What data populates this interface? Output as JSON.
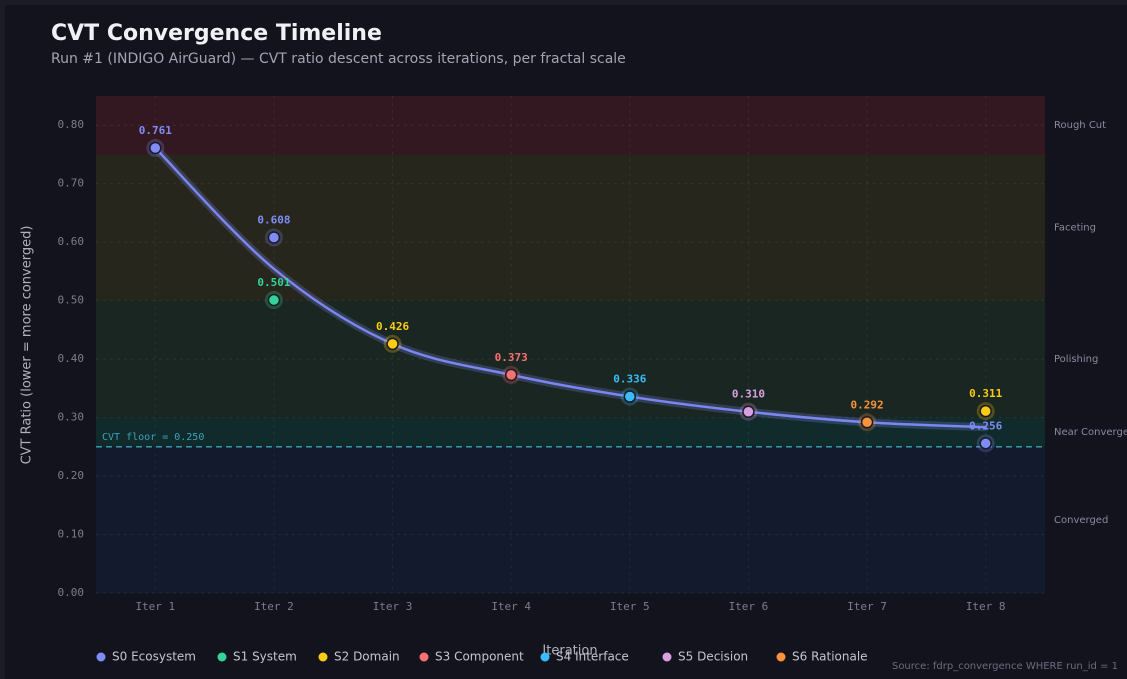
{
  "chart_data": {
    "type": "scatter",
    "title": "CVT Convergence Timeline",
    "subtitle": "Run #1 (INDIGO AirGuard) — CVT ratio descent across iterations, per fractal scale",
    "x_label": "Iteration",
    "y_label": "CVT Ratio (lower = more converged)",
    "source": "Source: fdrp_convergence WHERE run_id = 1",
    "categories": [
      "Iter 1",
      "Iter 2",
      "Iter 3",
      "Iter 4",
      "Iter 5",
      "Iter 6",
      "Iter 7",
      "Iter 8"
    ],
    "ylim": [
      0,
      0.85
    ],
    "yticks": [
      {
        "value": 0,
        "label": "0.00"
      },
      {
        "value": 0.1,
        "label": "0.10"
      },
      {
        "value": 0.2,
        "label": "0.20"
      },
      {
        "value": 0.3,
        "label": "0.30"
      },
      {
        "value": 0.4,
        "label": "0.40"
      },
      {
        "value": 0.5,
        "label": "0.50"
      },
      {
        "value": 0.6,
        "label": "0.60"
      },
      {
        "value": 0.7,
        "label": "0.70"
      },
      {
        "value": 0.8,
        "label": "0.80"
      }
    ],
    "grid": true,
    "bands": [
      {
        "label": "Rough Cut",
        "from": 0.75,
        "to": 0.85,
        "color": "#3a1a22"
      },
      {
        "label": "Faceting",
        "from": 0.5,
        "to": 0.75,
        "color": "#2a2a1c"
      },
      {
        "label": "Polishing",
        "from": 0.3,
        "to": 0.5,
        "color": "#1c2a22"
      },
      {
        "label": "Near Converge",
        "from": 0.25,
        "to": 0.3,
        "color": "#12302f"
      },
      {
        "label": "Converged",
        "from": 0,
        "to": 0.25,
        "color": "#141c30"
      }
    ],
    "reference": {
      "value": 0.25,
      "label": "CVT floor = 0.250",
      "color": "#3aa3b8"
    },
    "trend_color": "#7b86f0",
    "trend_values": [
      0.761,
      0.5545,
      0.426,
      0.373,
      0.336,
      0.31,
      0.292,
      0.2835
    ],
    "series": [
      {
        "name": "S0 Ecosystem",
        "color": "#7f8cf5",
        "values": [
          0.761,
          0.608,
          null,
          null,
          null,
          null,
          null,
          0.256
        ],
        "value_labels": [
          "0.761",
          "0.608",
          null,
          null,
          null,
          null,
          null,
          "0.256"
        ]
      },
      {
        "name": "S1 System",
        "color": "#34d399",
        "values": [
          null,
          0.501,
          null,
          null,
          null,
          null,
          null,
          null
        ],
        "value_labels": [
          null,
          "0.501",
          null,
          null,
          null,
          null,
          null,
          null
        ]
      },
      {
        "name": "S2 Domain",
        "color": "#facc15",
        "values": [
          null,
          null,
          0.426,
          null,
          null,
          null,
          null,
          0.311
        ],
        "value_labels": [
          null,
          null,
          "0.426",
          null,
          null,
          null,
          null,
          "0.311"
        ]
      },
      {
        "name": "S3 Component",
        "color": "#f87171",
        "values": [
          null,
          null,
          null,
          0.373,
          null,
          null,
          null,
          null
        ],
        "value_labels": [
          null,
          null,
          null,
          "0.373",
          null,
          null,
          null,
          null
        ]
      },
      {
        "name": "S4 Interface",
        "color": "#38bdf8",
        "values": [
          null,
          null,
          null,
          null,
          0.336,
          null,
          null,
          null
        ],
        "value_labels": [
          null,
          null,
          null,
          null,
          "0.336",
          null,
          null,
          null
        ]
      },
      {
        "name": "S5 Decision",
        "color": "#d8a0e0",
        "values": [
          null,
          null,
          null,
          null,
          null,
          0.31,
          null,
          null
        ],
        "value_labels": [
          null,
          null,
          null,
          null,
          null,
          "0.310",
          null,
          null
        ]
      },
      {
        "name": "S6 Rationale",
        "color": "#fb923c",
        "values": [
          null,
          null,
          null,
          null,
          null,
          null,
          0.292,
          null
        ],
        "value_labels": [
          null,
          null,
          null,
          null,
          null,
          null,
          "0.292",
          null
        ]
      }
    ]
  }
}
